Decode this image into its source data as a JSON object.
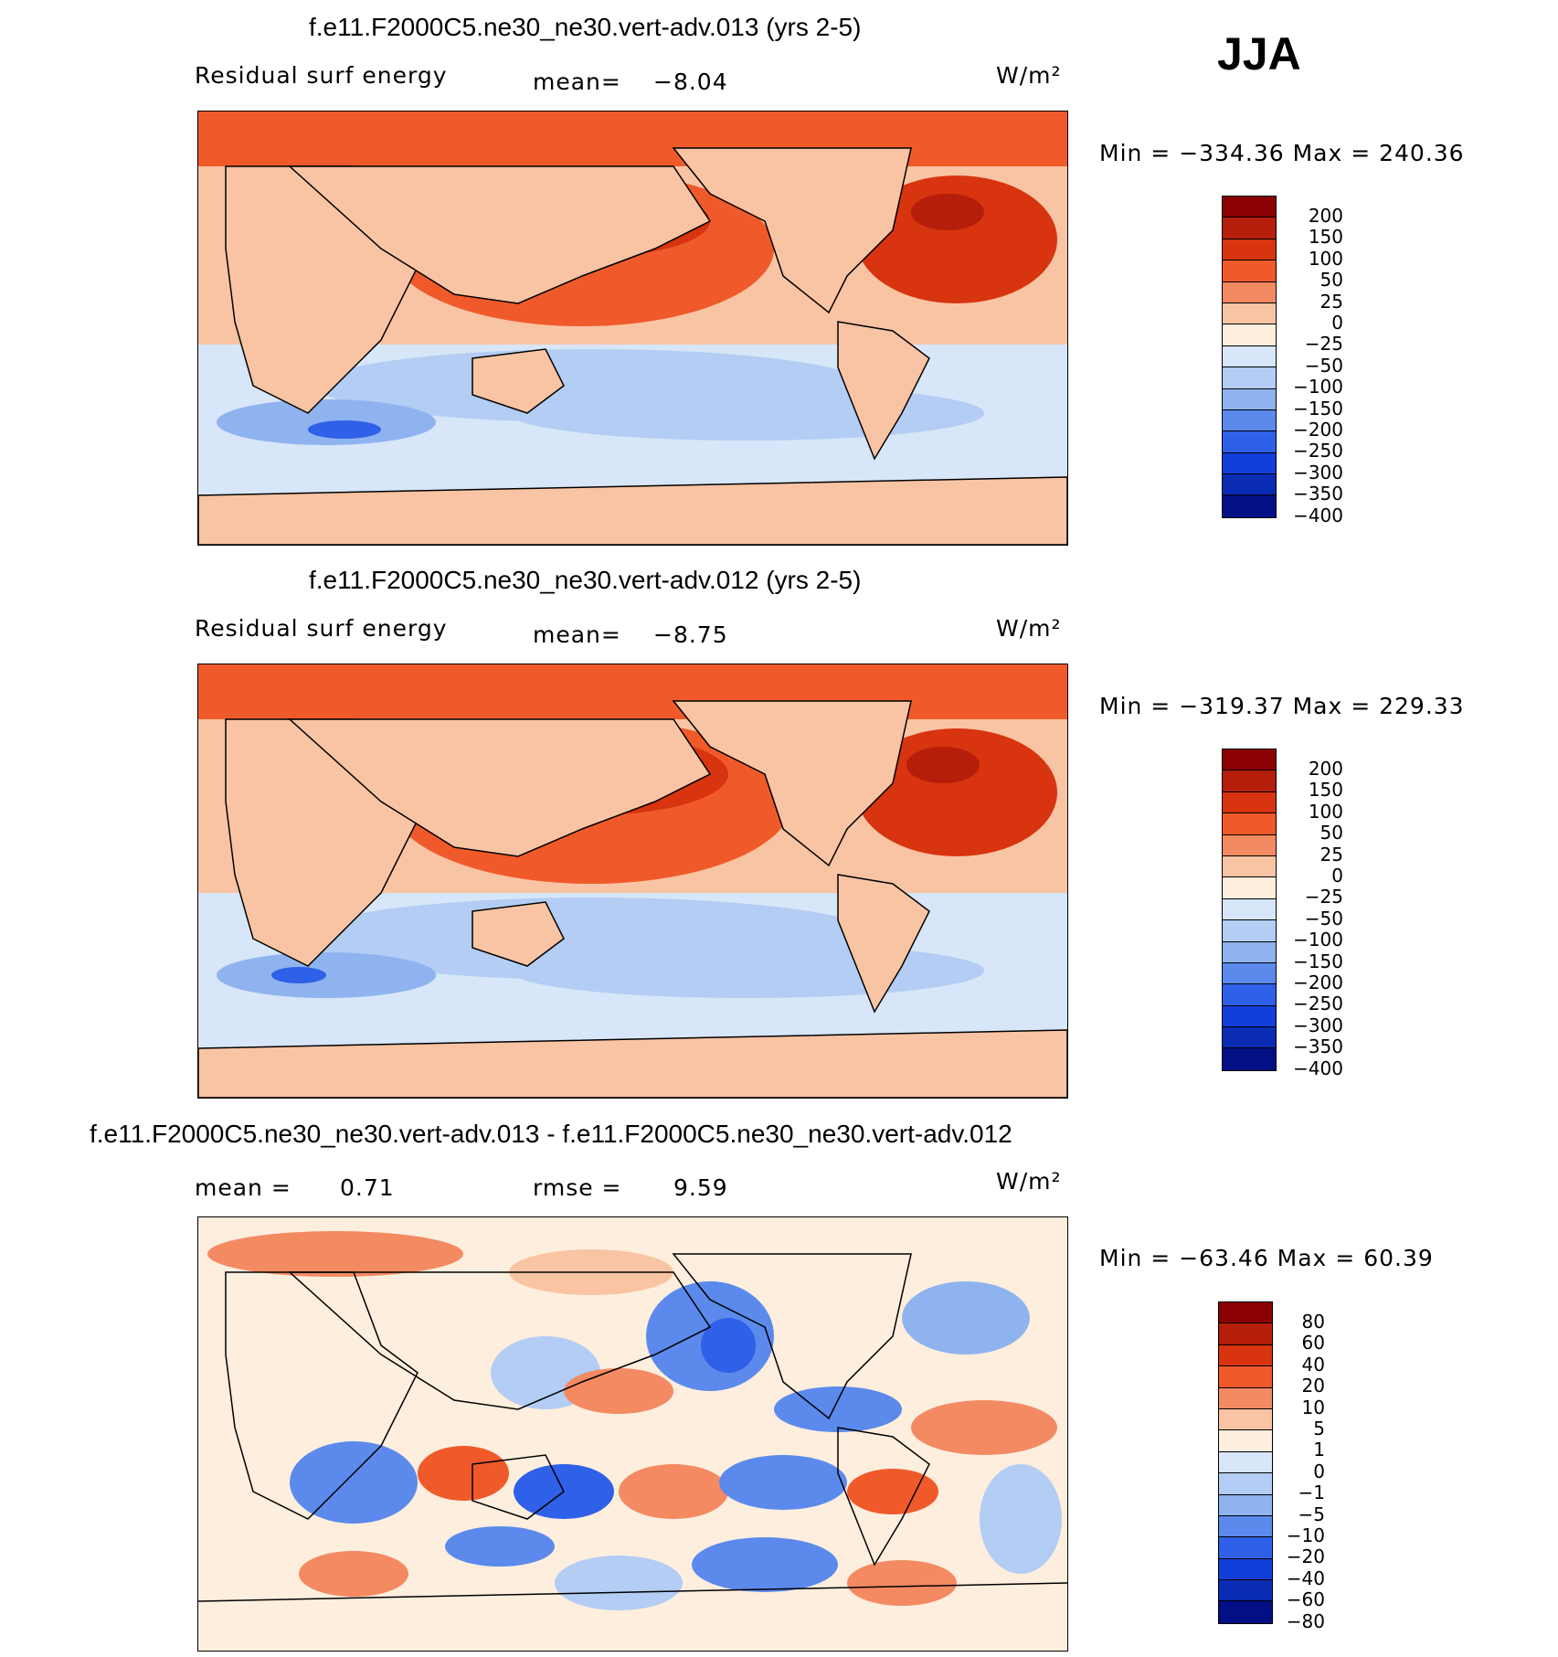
{
  "season": "JJA",
  "panels": [
    {
      "title": "f.e11.F2000C5.ne30_ne30.vert-adv.013 (yrs 2-5)",
      "left_label": "Residual surf energy",
      "mid_label": "mean=",
      "mid_value": "−8.04",
      "units": "W/m²",
      "minmax": "Min = −334.36 Max = 240.36",
      "colorbar": {
        "colors": [
          "#8b0000",
          "#b41e0a",
          "#d7340f",
          "#f05a2a",
          "#f48a62",
          "#f9c4a4",
          "#fdeede",
          "#d7e6f8",
          "#b3cdf4",
          "#8fb3ef",
          "#5b8aec",
          "#2f60e8",
          "#123fdc",
          "#0a2bb4",
          "#030f85"
        ],
        "labels": [
          "200",
          "150",
          "100",
          "50",
          "25",
          "0",
          "−25",
          "−50",
          "−100",
          "−150",
          "−200",
          "−250",
          "−300",
          "−350",
          "−400"
        ]
      }
    },
    {
      "title": "f.e11.F2000C5.ne30_ne30.vert-adv.012 (yrs 2-5)",
      "left_label": "Residual surf energy",
      "mid_label": "mean=",
      "mid_value": "−8.75",
      "units": "W/m²",
      "minmax": "Min = −319.37 Max = 229.33",
      "colorbar": {
        "colors": [
          "#8b0000",
          "#b41e0a",
          "#d7340f",
          "#f05a2a",
          "#f48a62",
          "#f9c4a4",
          "#fdeede",
          "#d7e6f8",
          "#b3cdf4",
          "#8fb3ef",
          "#5b8aec",
          "#2f60e8",
          "#123fdc",
          "#0a2bb4",
          "#030f85"
        ],
        "labels": [
          "200",
          "150",
          "100",
          "50",
          "25",
          "0",
          "−25",
          "−50",
          "−100",
          "−150",
          "−200",
          "−250",
          "−300",
          "−350",
          "−400"
        ]
      }
    },
    {
      "title": "f.e11.F2000C5.ne30_ne30.vert-adv.013 - f.e11.F2000C5.ne30_ne30.vert-adv.012",
      "left_label": "mean =",
      "left_value": "0.71",
      "mid_label": "rmse =",
      "mid_value": "9.59",
      "units": "W/m²",
      "minmax": "Min = −63.46 Max =  60.39",
      "colorbar": {
        "colors": [
          "#8b0000",
          "#b41e0a",
          "#d7340f",
          "#f05a2a",
          "#f48a62",
          "#f9c4a4",
          "#fdeede",
          "#d7e6f8",
          "#b3cdf4",
          "#8fb3ef",
          "#5b8aec",
          "#2f60e8",
          "#123fdc",
          "#0a2bb4",
          "#030f85"
        ],
        "labels": [
          "80",
          "60",
          "40",
          "20",
          "10",
          "5",
          "1",
          "0",
          "−1",
          "−5",
          "−10",
          "−20",
          "−40",
          "−60",
          "−80"
        ]
      }
    }
  ]
}
